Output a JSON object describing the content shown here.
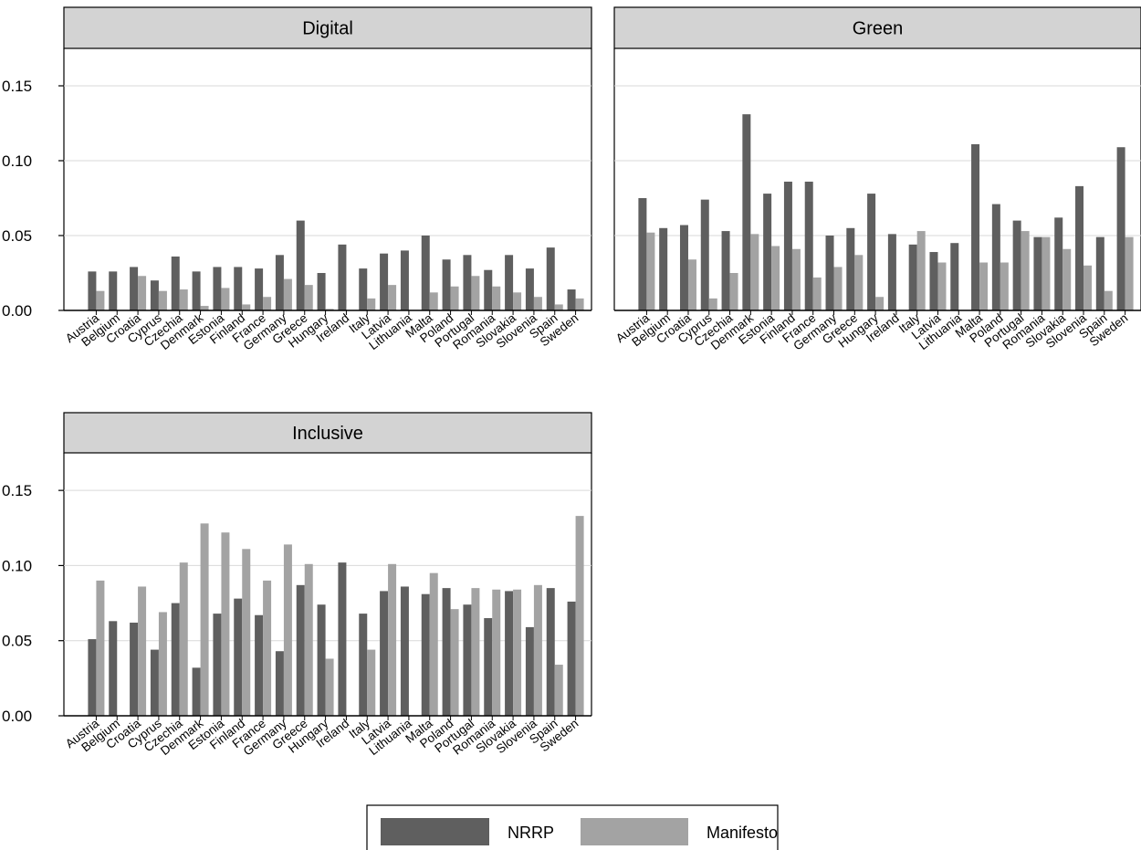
{
  "colors": {
    "nrrp": "#5f5f5f",
    "manifesto": "#a3a3a3",
    "strip": "#d3d3d3",
    "grid": "#d9d9d9"
  },
  "chart_data": {
    "type": "bar",
    "layout": "facet-grid",
    "categories": [
      "Austria",
      "Belgium",
      "Croatia",
      "Cyprus",
      "Czechia",
      "Denmark",
      "Estonia",
      "Finland",
      "France",
      "Germany",
      "Greece",
      "Hungary",
      "Ireland",
      "Italy",
      "Latvia",
      "Lithuania",
      "Malta",
      "Poland",
      "Portugal",
      "Romania",
      "Slovakia",
      "Slovenia",
      "Spain",
      "Sweden"
    ],
    "y_ticks": [
      "0.00",
      "0.05",
      "0.10",
      "0.15"
    ],
    "ylim": [
      0,
      0.175
    ],
    "grid": true,
    "legend": {
      "position": "bottom-center",
      "entries": [
        "NRRP",
        "Manifesto"
      ]
    },
    "panels": [
      {
        "title": "Digital",
        "series": [
          {
            "name": "NRRP",
            "values": [
              0.026,
              0.026,
              0.029,
              0.02,
              0.036,
              0.026,
              0.029,
              0.029,
              0.028,
              0.037,
              0.06,
              0.025,
              0.044,
              0.028,
              0.038,
              0.04,
              0.05,
              0.034,
              0.037,
              0.027,
              0.037,
              0.028,
              0.042,
              0.014
            ]
          },
          {
            "name": "Manifesto",
            "values": [
              0.013,
              0.0,
              0.023,
              0.013,
              0.014,
              0.003,
              0.015,
              0.004,
              0.009,
              0.021,
              0.017,
              0.001,
              0.0,
              0.008,
              0.017,
              0.0,
              0.012,
              0.016,
              0.023,
              0.016,
              0.012,
              0.009,
              0.004,
              0.008
            ]
          }
        ]
      },
      {
        "title": "Green",
        "series": [
          {
            "name": "NRRP",
            "values": [
              0.075,
              0.055,
              0.057,
              0.074,
              0.053,
              0.131,
              0.078,
              0.086,
              0.086,
              0.05,
              0.055,
              0.078,
              0.051,
              0.044,
              0.039,
              0.045,
              0.111,
              0.071,
              0.06,
              0.049,
              0.062,
              0.083,
              0.049,
              0.109
            ]
          },
          {
            "name": "Manifesto",
            "values": [
              0.052,
              0.0,
              0.034,
              0.008,
              0.025,
              0.051,
              0.043,
              0.041,
              0.022,
              0.029,
              0.037,
              0.009,
              0.0,
              0.053,
              0.032,
              0.0,
              0.032,
              0.032,
              0.053,
              0.049,
              0.041,
              0.03,
              0.013,
              0.049
            ]
          }
        ]
      },
      {
        "title": "Inclusive",
        "series": [
          {
            "name": "NRRP",
            "values": [
              0.051,
              0.063,
              0.062,
              0.044,
              0.075,
              0.032,
              0.068,
              0.078,
              0.067,
              0.043,
              0.087,
              0.074,
              0.102,
              0.068,
              0.083,
              0.086,
              0.081,
              0.085,
              0.074,
              0.065,
              0.083,
              0.059,
              0.085,
              0.076
            ]
          },
          {
            "name": "Manifesto",
            "values": [
              0.09,
              0.0,
              0.086,
              0.069,
              0.102,
              0.128,
              0.122,
              0.111,
              0.09,
              0.114,
              0.101,
              0.038,
              0.0,
              0.044,
              0.101,
              0.0,
              0.095,
              0.071,
              0.085,
              0.084,
              0.084,
              0.087,
              0.034,
              0.133
            ]
          }
        ]
      }
    ]
  }
}
